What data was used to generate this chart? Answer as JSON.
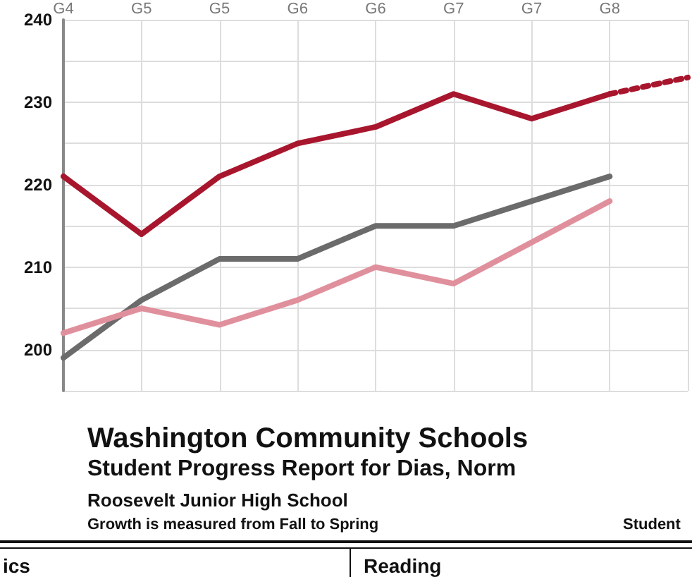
{
  "chart_data": {
    "type": "line",
    "title": "Washington Community Schools",
    "subtitle": "Student Progress Report for Dias, Norm",
    "annotations": [
      "Roosevelt Junior High School",
      "Growth is measured from Fall to Spring",
      "Student",
      "ics",
      "Reading"
    ],
    "categories": [
      "G4",
      "G5",
      "G5",
      "G6",
      "G6",
      "G7",
      "G7",
      "G8",
      null
    ],
    "series": [
      {
        "color": "#a8162e",
        "values": [
          221,
          214,
          221,
          225,
          227,
          231,
          228,
          231,
          null
        ]
      },
      {
        "color": "#a8162e",
        "line_style": "dotted",
        "values": [
          null,
          null,
          null,
          null,
          null,
          null,
          null,
          231,
          233
        ]
      },
      {
        "color": "#6b6b6b",
        "values": [
          199,
          206,
          211,
          211,
          215,
          215,
          218,
          221,
          null
        ]
      },
      {
        "color": "#e0909c",
        "values": [
          202,
          205,
          203,
          206,
          210,
          208,
          213,
          218,
          null
        ]
      }
    ],
    "ylim": [
      195,
      240
    ],
    "yticks": [
      {
        "value": 195,
        "label": null
      },
      200,
      {
        "value": 205,
        "label": null
      },
      210,
      {
        "value": 215,
        "label": null
      },
      220,
      {
        "value": 225,
        "label": null
      },
      230,
      {
        "value": 235,
        "label": null
      },
      240
    ],
    "grid": true,
    "marker": "none",
    "line_style": "solid"
  }
}
